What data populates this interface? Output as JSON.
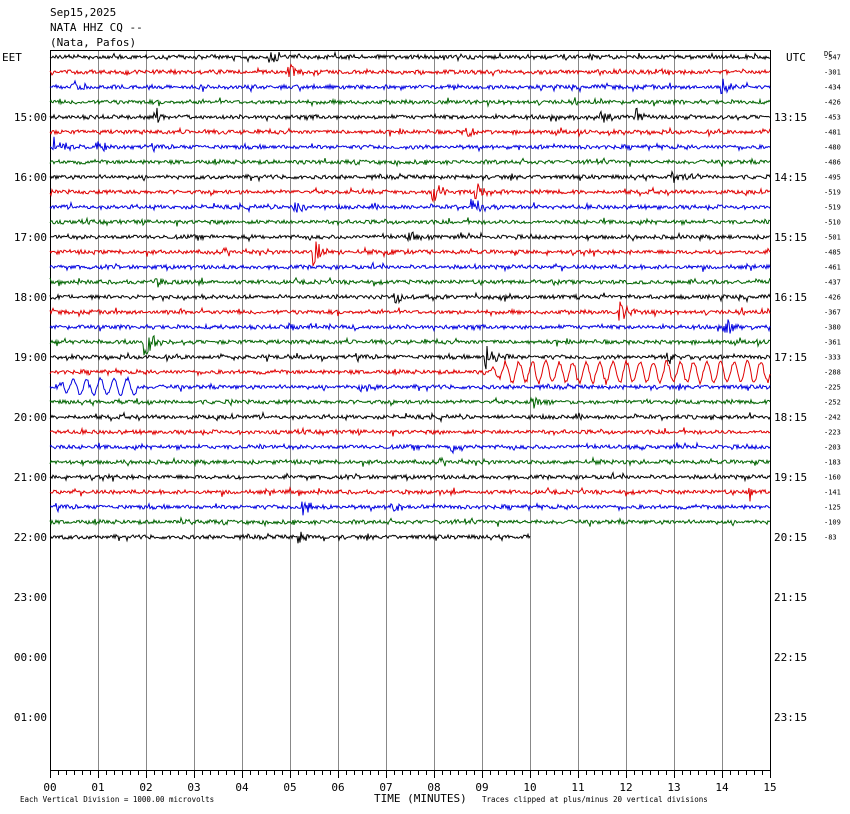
{
  "header": {
    "date": "Sep15,2025",
    "station": "NATA HHZ CQ --",
    "location": "(Nata, Pafos)"
  },
  "left_timezone": "EET",
  "right_timezone": "UTC",
  "dc_label": "DC",
  "footer": {
    "scale_note": "Each Vertical Division = 1000.00 microvolts",
    "xlabel": "TIME (MINUTES)",
    "clip_note": "Traces clipped at plus/minus 20 vertical divisions"
  },
  "chart_data": {
    "type": "line",
    "title": "NATA HHZ CQ --",
    "xlabel": "TIME (MINUTES)",
    "ylabel": "",
    "xlim": [
      0,
      15
    ],
    "x_ticks": [
      "00",
      "01",
      "02",
      "03",
      "04",
      "05",
      "06",
      "07",
      "08",
      "09",
      "10",
      "11",
      "12",
      "13",
      "14",
      "15"
    ],
    "left_hour_labels": [
      "15:00",
      "16:00",
      "17:00",
      "18:00",
      "19:00",
      "20:00",
      "21:00",
      "22:00",
      "23:00",
      "00:00",
      "01:00"
    ],
    "right_hour_labels": [
      "13:15",
      "14:15",
      "15:15",
      "16:15",
      "17:15",
      "18:15",
      "19:15",
      "20:15",
      "21:15",
      "22:15",
      "23:15"
    ],
    "trace_colors": [
      "#000000",
      "#e00000",
      "#0000e0",
      "#006400"
    ],
    "trace_count": 33,
    "last_trace_end_minute": 10,
    "dc_offsets": [
      "-547",
      "-301",
      "-434",
      "-426",
      "-453",
      "-481",
      "-480",
      "-486",
      "-495",
      "-519",
      "-519",
      "-510",
      "-501",
      "-485",
      "-461",
      "-437",
      "-426",
      "-367",
      "-380",
      "-361",
      "-333",
      "-288",
      "-225",
      "-252",
      "-242",
      "-223",
      "-203",
      "-183",
      "-160",
      "-141",
      "-125",
      "-109",
      "-83"
    ],
    "events": [
      {
        "trace": 0,
        "minute": 4.6,
        "amplitude": 8
      },
      {
        "trace": 1,
        "minute": 5.0,
        "amplitude": 9
      },
      {
        "trace": 2,
        "minute": 14.0,
        "amplitude": 10
      },
      {
        "trace": 2,
        "minute": 0.5,
        "amplitude": 6
      },
      {
        "trace": 4,
        "minute": 2.2,
        "amplitude": 9
      },
      {
        "trace": 4,
        "minute": 12.2,
        "amplitude": 9
      },
      {
        "trace": 4,
        "minute": 11.5,
        "amplitude": 7
      },
      {
        "trace": 5,
        "minute": 8.7,
        "amplitude": 7
      },
      {
        "trace": 5,
        "minute": 15.0,
        "amplitude": 7
      },
      {
        "trace": 6,
        "minute": 1.0,
        "amplitude": 9
      },
      {
        "trace": 6,
        "minute": 0.1,
        "amplitude": 14
      },
      {
        "trace": 8,
        "minute": 13.0,
        "amplitude": 6
      },
      {
        "trace": 9,
        "minute": 8.0,
        "amplitude": 12
      },
      {
        "trace": 9,
        "minute": 8.9,
        "amplitude": 8
      },
      {
        "trace": 10,
        "minute": 8.8,
        "amplitude": 10
      },
      {
        "trace": 10,
        "minute": 5.1,
        "amplitude": 8
      },
      {
        "trace": 12,
        "minute": 7.5,
        "amplitude": 7
      },
      {
        "trace": 13,
        "minute": 5.5,
        "amplitude": 16
      },
      {
        "trace": 13,
        "minute": 7.0,
        "amplitude": 4
      },
      {
        "trace": 15,
        "minute": 2.2,
        "amplitude": 5
      },
      {
        "trace": 16,
        "minute": 7.2,
        "amplitude": 6
      },
      {
        "trace": 17,
        "minute": 11.9,
        "amplitude": 11
      },
      {
        "trace": 18,
        "minute": 14.1,
        "amplitude": 8
      },
      {
        "trace": 18,
        "minute": 5.0,
        "amplitude": 5
      },
      {
        "trace": 19,
        "minute": 2.0,
        "amplitude": 16
      },
      {
        "trace": 20,
        "minute": 9.1,
        "amplitude": 14
      },
      {
        "trace": 20,
        "minute": 12.9,
        "amplitude": 6
      },
      {
        "trace": 22,
        "minute": 6.5,
        "amplitude": 6
      },
      {
        "trace": 23,
        "minute": 10.1,
        "amplitude": 6
      },
      {
        "trace": 26,
        "minute": 8.4,
        "amplitude": 5
      },
      {
        "trace": 29,
        "minute": 14.6,
        "amplitude": 6
      },
      {
        "trace": 30,
        "minute": 5.3,
        "amplitude": 9
      },
      {
        "trace": 30,
        "minute": 7.1,
        "amplitude": 6
      },
      {
        "trace": 31,
        "minute": 2.7,
        "amplitude": 5
      },
      {
        "trace": 32,
        "minute": 5.2,
        "amplitude": 6
      }
    ],
    "long_period_waves": [
      {
        "trace": 21,
        "start_minute": 9.0,
        "end_minute": 15.0,
        "amplitude": 10,
        "period_minutes": 0.28
      },
      {
        "trace": 22,
        "start_minute": 0.0,
        "end_minute": 1.8,
        "amplitude": 8,
        "period_minutes": 0.28
      }
    ]
  }
}
